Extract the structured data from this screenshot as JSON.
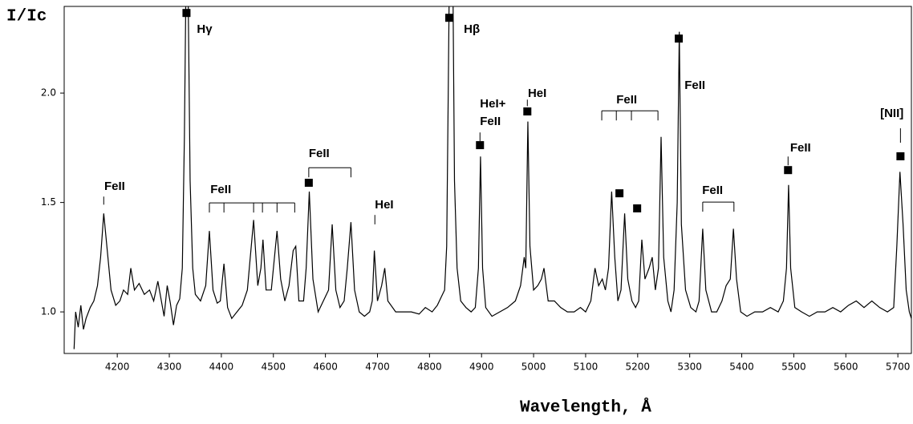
{
  "chart_data": {
    "type": "line",
    "ylabel": "I/Ic",
    "xlabel": "Wavelength, Å",
    "color": "#000000",
    "xlim": [
      4098,
      5726
    ],
    "ylim": [
      0.81,
      2.396
    ],
    "xticks": [
      4200,
      4300,
      4400,
      4500,
      4600,
      4700,
      4800,
      4900,
      5000,
      5100,
      5200,
      5300,
      5400,
      5500,
      5600,
      5700
    ],
    "yticks": [
      {
        "value": 1,
        "label": "1.0"
      },
      {
        "value": 1.5,
        "label": "1.5"
      },
      {
        "value": 2,
        "label": "2.0"
      }
    ],
    "x": [
      4117,
      4120,
      4125,
      4130,
      4135,
      4140,
      4148,
      4155,
      4162,
      4168,
      4174,
      4180,
      4188,
      4197,
      4205,
      4212,
      4220,
      4226,
      4233,
      4242,
      4252,
      4262,
      4270,
      4278,
      4284,
      4290,
      4296,
      4302,
      4308,
      4314,
      4320,
      4325,
      4329,
      4332,
      4336,
      4340,
      4345,
      4350,
      4360,
      4370,
      4377,
      4384,
      4392,
      4398,
      4405,
      4412,
      4420,
      4430,
      4440,
      4450,
      4462,
      4470,
      4476,
      4480,
      4486,
      4496,
      4507,
      4514,
      4522,
      4530,
      4538,
      4543,
      4549,
      4558,
      4563,
      4569,
      4576,
      4586,
      4596,
      4606,
      4613,
      4620,
      4628,
      4636,
      4642,
      4649,
      4656,
      4665,
      4675,
      4685,
      4690,
      4694,
      4700,
      4708,
      4714,
      4720,
      4735,
      4750,
      4765,
      4780,
      4792,
      4805,
      4815,
      4823,
      4829,
      4833,
      4836,
      4838,
      4845,
      4848,
      4853,
      4860,
      4870,
      4880,
      4888,
      4894,
      4898,
      4902,
      4908,
      4920,
      4935,
      4950,
      4965,
      4975,
      4982,
      4985,
      4989,
      4993,
      5000,
      5008,
      5015,
      5020,
      5028,
      5040,
      5052,
      5065,
      5078,
      5090,
      5100,
      5110,
      5118,
      5125,
      5132,
      5138,
      5144,
      5150,
      5156,
      5162,
      5168,
      5175,
      5181,
      5189,
      5196,
      5202,
      5208,
      5214,
      5222,
      5228,
      5234,
      5240,
      5245,
      5250,
      5258,
      5264,
      5270,
      5276,
      5280,
      5284,
      5292,
      5302,
      5312,
      5318,
      5325,
      5331,
      5342,
      5352,
      5362,
      5370,
      5378,
      5384,
      5390,
      5398,
      5410,
      5425,
      5440,
      5455,
      5470,
      5480,
      5486,
      5490,
      5494,
      5502,
      5515,
      5530,
      5545,
      5560,
      5575,
      5590,
      5605,
      5620,
      5635,
      5650,
      5665,
      5680,
      5692,
      5698,
      5704,
      5710,
      5716,
      5722,
      5726
    ],
    "values": [
      0.83,
      1.0,
      0.93,
      1.03,
      0.92,
      0.97,
      1.02,
      1.05,
      1.12,
      1.25,
      1.45,
      1.3,
      1.1,
      1.03,
      1.05,
      1.1,
      1.08,
      1.2,
      1.1,
      1.13,
      1.08,
      1.1,
      1.05,
      1.14,
      1.06,
      0.98,
      1.12,
      1.04,
      0.94,
      1.03,
      1.06,
      1.2,
      1.8,
      2.5,
      2.5,
      1.6,
      1.2,
      1.08,
      1.05,
      1.12,
      1.37,
      1.1,
      1.04,
      1.05,
      1.22,
      1.02,
      0.97,
      1.0,
      1.03,
      1.1,
      1.42,
      1.12,
      1.2,
      1.33,
      1.1,
      1.1,
      1.37,
      1.15,
      1.05,
      1.12,
      1.28,
      1.3,
      1.05,
      1.05,
      1.2,
      1.55,
      1.15,
      1.0,
      1.05,
      1.1,
      1.4,
      1.1,
      1.02,
      1.05,
      1.2,
      1.41,
      1.1,
      1.0,
      0.98,
      1.0,
      1.05,
      1.28,
      1.05,
      1.12,
      1.2,
      1.05,
      1.0,
      1.0,
      1.0,
      0.99,
      1.02,
      1.0,
      1.03,
      1.07,
      1.1,
      1.3,
      2.0,
      2.5,
      2.5,
      1.6,
      1.2,
      1.05,
      1.02,
      1.0,
      1.02,
      1.2,
      1.71,
      1.2,
      1.02,
      0.98,
      1.0,
      1.02,
      1.05,
      1.12,
      1.25,
      1.2,
      1.87,
      1.3,
      1.1,
      1.12,
      1.15,
      1.2,
      1.05,
      1.05,
      1.02,
      1.0,
      1.0,
      1.02,
      1.0,
      1.05,
      1.2,
      1.12,
      1.15,
      1.1,
      1.2,
      1.55,
      1.25,
      1.05,
      1.1,
      1.45,
      1.15,
      1.05,
      1.02,
      1.05,
      1.33,
      1.15,
      1.2,
      1.25,
      1.1,
      1.2,
      1.8,
      1.25,
      1.05,
      1.0,
      1.1,
      1.5,
      2.28,
      1.4,
      1.1,
      1.02,
      1.0,
      1.05,
      1.38,
      1.1,
      1.0,
      1.0,
      1.05,
      1.12,
      1.15,
      1.38,
      1.15,
      1.0,
      0.98,
      1.0,
      1.0,
      1.02,
      1.0,
      1.05,
      1.2,
      1.58,
      1.2,
      1.02,
      1.0,
      0.98,
      1.0,
      1.0,
      1.02,
      1.0,
      1.03,
      1.05,
      1.02,
      1.05,
      1.02,
      1.0,
      1.02,
      1.3,
      1.64,
      1.4,
      1.1,
      1.0,
      0.97
    ],
    "markers": {
      "x": [
        4333,
        4568,
        4838,
        4897,
        4988,
        5165,
        5199,
        5279,
        5489,
        5705
      ],
      "y": [
        2.366,
        1.59,
        2.344,
        1.762,
        1.916,
        1.542,
        1.473,
        2.249,
        1.648,
        1.711
      ]
    },
    "annotations": [
      {
        "text": "FeII",
        "x": 4175,
        "y": 1.571
      },
      {
        "text": "Hγ",
        "x": 4353,
        "y": 2.29
      },
      {
        "text": "FeII",
        "x": 4379,
        "y": 1.557
      },
      {
        "text": "FeII",
        "x": 4568,
        "y": 1.722
      },
      {
        "text": "HeI",
        "x": 4695,
        "y": 1.487
      },
      {
        "text": "Hβ",
        "x": 4866,
        "y": 2.29
      },
      {
        "text": "HeI+",
        "x": 4897,
        "y": 1.949
      },
      {
        "text": "FeII",
        "x": 4897,
        "y": 1.868
      },
      {
        "text": "HeI",
        "x": 4989,
        "y": 1.996
      },
      {
        "text": "FeII",
        "x": 5159,
        "y": 1.967
      },
      {
        "text": "FeII",
        "x": 5290,
        "y": 2.033
      },
      {
        "text": "FeII",
        "x": 5324,
        "y": 1.553
      },
      {
        "text": "FeII",
        "x": 5493,
        "y": 1.747
      },
      {
        "text": "[NII]",
        "x": 5666,
        "y": 1.905
      }
    ],
    "leaders": [
      {
        "x": 4174,
        "y1": 1.527,
        "y2": 1.49
      },
      {
        "x": 4695,
        "y1": 1.443,
        "y2": 1.4
      },
      {
        "x": 4897,
        "y1": 1.82,
        "y2": 1.78
      },
      {
        "x": 4988,
        "y1": 1.97,
        "y2": 1.94
      },
      {
        "x": 5489,
        "y1": 1.71,
        "y2": 1.67
      },
      {
        "x": 5705,
        "y1": 1.839,
        "y2": 1.773
      }
    ],
    "brackets": [
      {
        "x": [
          4377,
          4405,
          4462,
          4479,
          4507,
          4541
        ],
        "y": 1.498,
        "y_end": 1.454
      },
      {
        "x": [
          4568,
          4649
        ],
        "y": 1.659,
        "y_end": 1.615
      },
      {
        "x": [
          5131,
          5159,
          5188,
          5239
        ],
        "y": 1.919,
        "y_end": 1.875
      },
      {
        "x": [
          5325,
          5385
        ],
        "y": 1.502,
        "y_end": 1.458
      }
    ]
  }
}
